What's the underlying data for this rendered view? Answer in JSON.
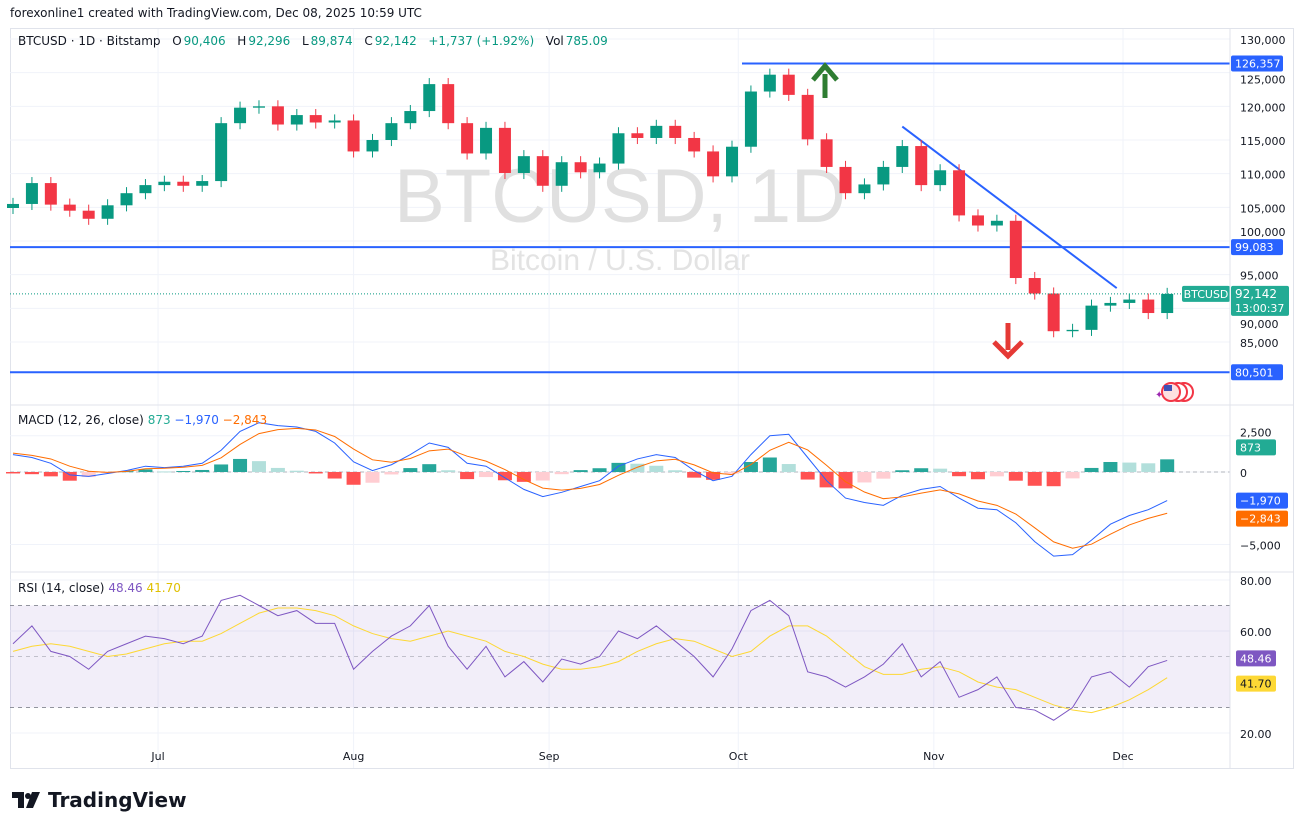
{
  "credit": "forexonline1 created with TradingView.com, Dec 08, 2025 10:59 UTC",
  "legend": {
    "symbol": "BTCUSD · 1D · Bitstamp",
    "o_label": "O",
    "o": "90,406",
    "h_label": "H",
    "h": "92,296",
    "l_label": "L",
    "l": "89,874",
    "c_label": "C",
    "c": "92,142",
    "change": "+1,737 (+1.92%)",
    "vol_label": "Vol",
    "vol": "785.09"
  },
  "watermark": {
    "title": "BTCUSD, 1D",
    "subtitle": "Bitcoin / U.S. Dollar"
  },
  "macd_legend": {
    "label": "MACD (12, 26, close)",
    "hist": "873",
    "macd": "−1,970",
    "signal": "−2,843"
  },
  "rsi_legend": {
    "label": "RSI (14, close)",
    "rsi": "48.46",
    "ma": "41.70"
  },
  "price_tag": {
    "symbol": "BTCUSD",
    "price": "92,142",
    "countdown": "13:00:37"
  },
  "levels": [
    {
      "value": 126357,
      "label": "126,357"
    },
    {
      "value": 99083,
      "label": "99,083"
    },
    {
      "value": 80501,
      "label": "80,501"
    }
  ],
  "macd_tags": {
    "hist": "873",
    "macd": "−1,970",
    "signal": "−2,843"
  },
  "rsi_tags": {
    "rsi": "48.46",
    "ma": "41.70"
  },
  "logo": "TradingView",
  "colors": {
    "up": "#089981",
    "down": "#f23645",
    "line": "#2962ff",
    "signal": "#ff6d00",
    "rsi": "#7e57c2",
    "rsi_ma": "#fdd835",
    "arrow_up": "#2e7d32",
    "arrow_down": "#e53935"
  },
  "chart_data": [
    {
      "type": "candlestick",
      "title": "BTCUSD",
      "ylim": [
        78000,
        131000
      ],
      "y_ticks": [
        "130,000",
        "125,000",
        "120,000",
        "115,000",
        "110,000",
        "105,000",
        "100,000",
        "95,000",
        "90,000",
        "85,000"
      ],
      "y_tick_values": [
        130000,
        125000,
        120000,
        115000,
        110000,
        105000,
        100000,
        95000,
        90000,
        85000
      ],
      "x_ticks": [
        {
          "label": "Jul",
          "date": "2025-07-01"
        },
        {
          "label": "Aug",
          "date": "2025-08-01"
        },
        {
          "label": "Sep",
          "date": "2025-09-01"
        },
        {
          "label": "Oct",
          "date": "2025-10-01"
        },
        {
          "label": "Nov",
          "date": "2025-11-01"
        },
        {
          "label": "Dec",
          "date": "2025-12-01"
        }
      ],
      "dates": [
        "2025-06-08",
        "2025-06-11",
        "2025-06-14",
        "2025-06-17",
        "2025-06-20",
        "2025-06-23",
        "2025-06-26",
        "2025-06-29",
        "2025-07-02",
        "2025-07-05",
        "2025-07-08",
        "2025-07-11",
        "2025-07-14",
        "2025-07-17",
        "2025-07-20",
        "2025-07-23",
        "2025-07-26",
        "2025-07-29",
        "2025-08-01",
        "2025-08-04",
        "2025-08-07",
        "2025-08-10",
        "2025-08-13",
        "2025-08-16",
        "2025-08-19",
        "2025-08-22",
        "2025-08-25",
        "2025-08-28",
        "2025-08-31",
        "2025-09-03",
        "2025-09-06",
        "2025-09-09",
        "2025-09-12",
        "2025-09-15",
        "2025-09-18",
        "2025-09-21",
        "2025-09-24",
        "2025-09-27",
        "2025-09-30",
        "2025-10-03",
        "2025-10-06",
        "2025-10-09",
        "2025-10-12",
        "2025-10-15",
        "2025-10-18",
        "2025-10-21",
        "2025-10-24",
        "2025-10-27",
        "2025-10-30",
        "2025-11-02",
        "2025-11-05",
        "2025-11-08",
        "2025-11-11",
        "2025-11-14",
        "2025-11-17",
        "2025-11-20",
        "2025-11-23",
        "2025-11-26",
        "2025-11-29",
        "2025-12-02",
        "2025-12-05",
        "2025-12-08"
      ],
      "close": [
        105500,
        108600,
        105400,
        104500,
        103300,
        105300,
        107100,
        108300,
        108800,
        108200,
        108900,
        117500,
        119800,
        120000,
        117300,
        118700,
        117600,
        117900,
        113300,
        115000,
        117500,
        119300,
        123300,
        117500,
        113000,
        116800,
        110100,
        112600,
        108200,
        111700,
        110200,
        111500,
        116000,
        115300,
        117100,
        115300,
        113300,
        109600,
        114000,
        122200,
        124700,
        121700,
        115100,
        111000,
        107100,
        108400,
        111000,
        114100,
        108300,
        110500,
        103800,
        102300,
        103000,
        94500,
        92200,
        86600,
        86800,
        90400,
        90800,
        91300,
        89300,
        92142
      ],
      "trendline": [
        {
          "date": "2025-10-27",
          "value": 117000
        },
        {
          "date": "2025-11-30",
          "value": 93000
        }
      ]
    },
    {
      "type": "line",
      "title": "MACD (12, 26, close)",
      "ylim": [
        -6500,
        3600
      ],
      "y_ticks": [
        "2,500",
        "0",
        "−5,000"
      ],
      "y_tick_values": [
        2500,
        0,
        -5000
      ],
      "series": [
        {
          "name": "MACD",
          "values": [
            1200,
            1000,
            600,
            -200,
            -300,
            -100,
            100,
            400,
            300,
            400,
            600,
            1500,
            2800,
            3400,
            3200,
            3100,
            2800,
            2000,
            700,
            100,
            500,
            1200,
            2000,
            1700,
            600,
            400,
            -400,
            -1200,
            -1700,
            -1400,
            -1000,
            -600,
            400,
            900,
            1200,
            1000,
            100,
            -600,
            -300,
            1200,
            2500,
            2600,
            1000,
            -600,
            -1800,
            -2100,
            -2300,
            -1600,
            -1200,
            -1000,
            -1800,
            -2500,
            -2600,
            -3500,
            -4800,
            -5800,
            -5700,
            -4700,
            -3600,
            -3000,
            -2600,
            -1970
          ]
        },
        {
          "name": "Signal",
          "values": [
            1300,
            1150,
            900,
            400,
            50,
            -25,
            40,
            220,
            260,
            330,
            460,
            980,
            1900,
            2650,
            2920,
            3010,
            2900,
            2450,
            1580,
            840,
            670,
            930,
            1460,
            1580,
            1090,
            750,
            170,
            -520,
            -1110,
            -1250,
            -1130,
            -860,
            -230,
            330,
            770,
            880,
            490,
            -60,
            -180,
            510,
            1500,
            2050,
            1520,
            460,
            -670,
            -1380,
            -1840,
            -1720,
            -1460,
            -1230,
            -1510,
            -2000,
            -2300,
            -2900,
            -3850,
            -4820,
            -5260,
            -4980,
            -4290,
            -3650,
            -3200,
            -2843
          ]
        }
      ]
    },
    {
      "type": "line",
      "title": "RSI (14, close)",
      "ylim": [
        15,
        82
      ],
      "y_ticks": [
        "80.00",
        "60.00",
        "20.00"
      ],
      "y_tick_values": [
        80,
        60,
        20
      ],
      "bands": [
        70,
        50,
        30
      ],
      "series": [
        {
          "name": "RSI",
          "values": [
            55,
            62,
            52,
            50,
            45,
            52,
            55,
            58,
            57,
            55,
            58,
            72,
            74,
            70,
            66,
            68,
            63,
            63,
            45,
            52,
            58,
            62,
            70,
            54,
            45,
            54,
            42,
            48,
            40,
            49,
            47,
            50,
            60,
            57,
            62,
            56,
            50,
            42,
            53,
            68,
            72,
            66,
            44,
            42,
            38,
            42,
            47,
            55,
            42,
            48,
            34,
            37,
            42,
            30,
            29,
            25,
            30,
            42,
            44,
            38,
            46,
            48.46
          ]
        },
        {
          "name": "RSI MA",
          "values": [
            52,
            54,
            55,
            54,
            52,
            50,
            51,
            53,
            55,
            56,
            56,
            59,
            63,
            67,
            69,
            69,
            68,
            66,
            62,
            59,
            57,
            56,
            58,
            60,
            58,
            56,
            52,
            50,
            47,
            45,
            45,
            46,
            48,
            52,
            55,
            57,
            56,
            53,
            50,
            52,
            58,
            62,
            62,
            58,
            52,
            46,
            43,
            43,
            45,
            46,
            44,
            40,
            38,
            37,
            34,
            31,
            29,
            28,
            30,
            33,
            37,
            41.7
          ]
        }
      ]
    }
  ]
}
